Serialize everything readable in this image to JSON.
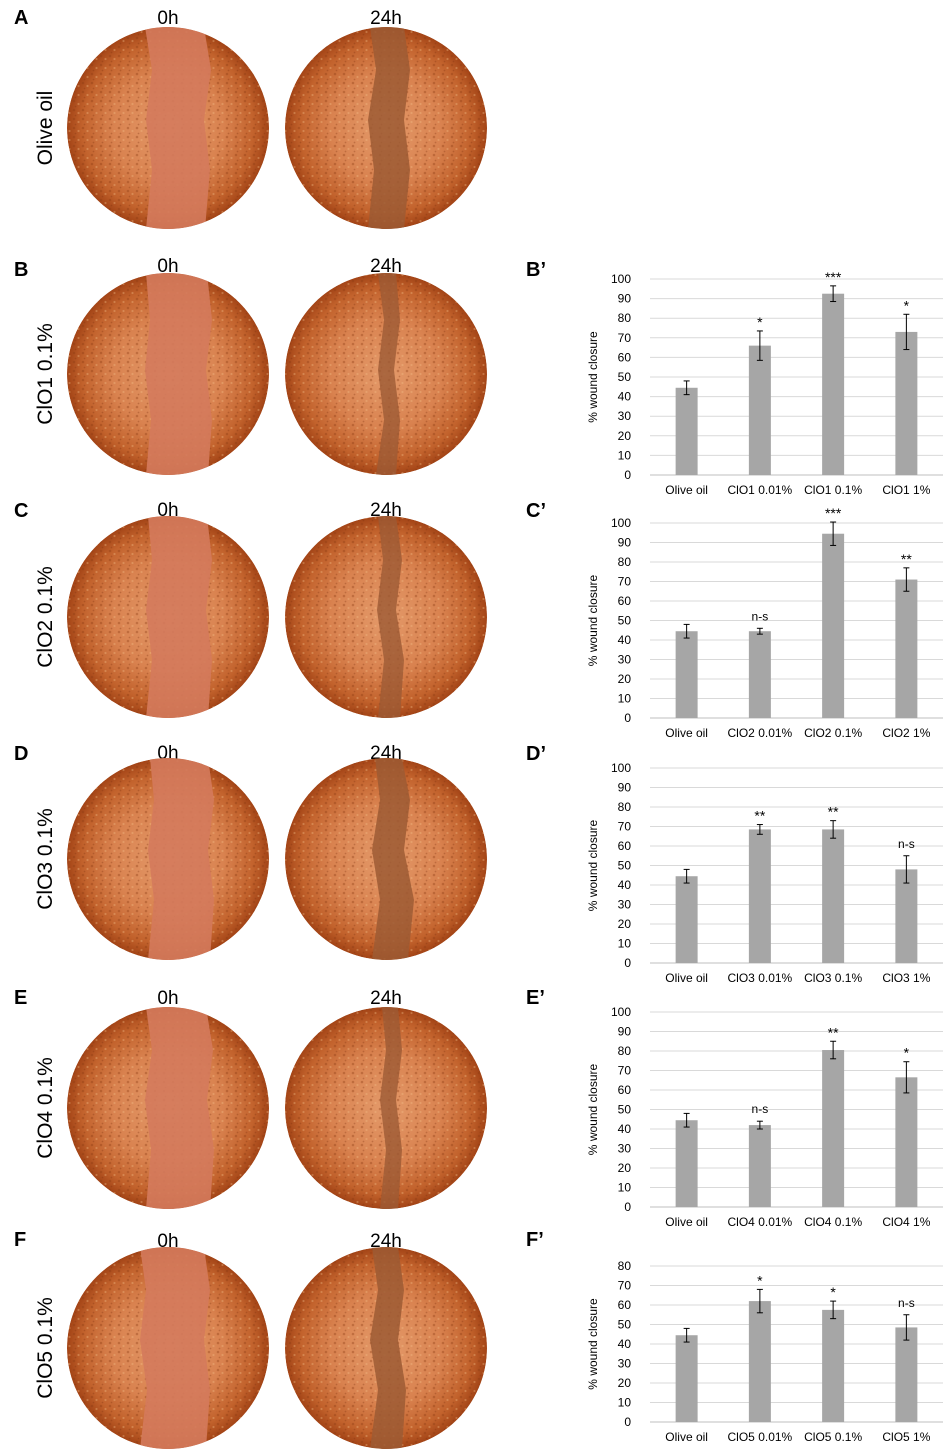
{
  "rows": [
    {
      "panel": "A",
      "label": "Olive oil",
      "t0": "0h",
      "t1": "24h"
    },
    {
      "panel": "B",
      "label": "ClO1 0.1%",
      "t0": "0h",
      "t1": "24h"
    },
    {
      "panel": "C",
      "label": "ClO2 0.1%",
      "t0": "0h",
      "t1": "24h"
    },
    {
      "panel": "D",
      "label": "ClO3  0.1%",
      "t0": "0h",
      "t1": "24h"
    },
    {
      "panel": "E",
      "label": "ClO4 0.1%",
      "t0": "0h",
      "t1": "24h"
    },
    {
      "panel": "F",
      "label": "ClO5 0.1%",
      "t0": "0h",
      "t1": "24h"
    }
  ],
  "colors": {
    "bar": "#a6a6a6",
    "grid": "#d9d9d9",
    "axis": "#bfbfbf",
    "dish_center": "#e49a6a",
    "dish_edge": "#a34416",
    "wound_0h": "#d47a5c",
    "wound_24h": "#9c5a34"
  },
  "chart_data": [
    {
      "panel": "B’",
      "type": "bar",
      "ylabel": "% wound closure",
      "ylim": [
        0,
        100
      ],
      "ystep": 10,
      "grid": true,
      "categories": [
        "Olive oil",
        "ClO1 0.01%",
        "ClO1 0.1%",
        "ClO1 1%"
      ],
      "values": [
        44.5,
        66,
        92.5,
        73
      ],
      "errors": [
        3.5,
        7.5,
        4,
        9
      ],
      "significance": [
        "",
        "*",
        "***",
        "*"
      ]
    },
    {
      "panel": "C’",
      "type": "bar",
      "ylabel": "% wound closure",
      "ylim": [
        0,
        100
      ],
      "ystep": 10,
      "grid": true,
      "categories": [
        "Olive oil",
        "ClO2 0.01%",
        "ClO2 0.1%",
        "ClO2 1%"
      ],
      "values": [
        44.5,
        44.5,
        94.5,
        71
      ],
      "errors": [
        3.5,
        1.5,
        6,
        6
      ],
      "significance": [
        "",
        "n-s",
        "***",
        "**"
      ]
    },
    {
      "panel": "D’",
      "type": "bar",
      "ylabel": "% wound closure",
      "ylim": [
        0,
        100
      ],
      "ystep": 10,
      "grid": true,
      "categories": [
        "Olive oil",
        "ClO3 0.01%",
        "ClO3 0.1%",
        "ClO3 1%"
      ],
      "values": [
        44.5,
        68.5,
        68.5,
        48
      ],
      "errors": [
        3.5,
        2.5,
        4.5,
        7
      ],
      "significance": [
        "",
        "**",
        "**",
        "n-s"
      ]
    },
    {
      "panel": "E’",
      "type": "bar",
      "ylabel": "% wound closure",
      "ylim": [
        0,
        100
      ],
      "ystep": 10,
      "grid": true,
      "categories": [
        "Olive oil",
        "ClO4 0.01%",
        "ClO4 0.1%",
        "ClO4 1%"
      ],
      "values": [
        44.5,
        42,
        80.5,
        66.5
      ],
      "errors": [
        3.5,
        2,
        4.5,
        8
      ],
      "significance": [
        "",
        "n-s",
        "**",
        "*"
      ]
    },
    {
      "panel": "F’",
      "type": "bar",
      "ylabel": "% wound closure",
      "ylim": [
        0,
        80
      ],
      "ystep": 10,
      "grid": true,
      "categories": [
        "Olive oil",
        "ClO5 0.01%",
        "ClO5 0.1%",
        "ClO5 1%"
      ],
      "values": [
        44.5,
        62,
        57.5,
        48.5
      ],
      "errors": [
        3.5,
        6,
        4.5,
        6.5
      ],
      "significance": [
        "",
        "*",
        "*",
        "n-s"
      ]
    }
  ]
}
